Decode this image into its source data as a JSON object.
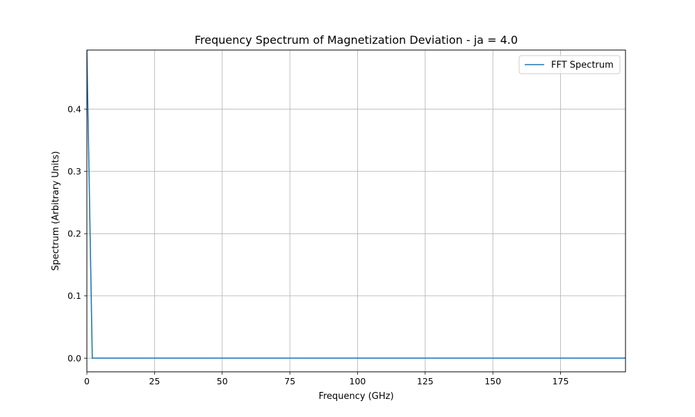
{
  "chart_data": {
    "type": "line",
    "title": "Frequency Spectrum of Magnetization Deviation - ja = 4.0",
    "xlabel": "Frequency (GHz)",
    "ylabel": "Spectrum (Arbitrary Units)",
    "xlim": [
      0,
      199
    ],
    "ylim": [
      -0.022,
      0.495
    ],
    "xticks": [
      0,
      25,
      50,
      75,
      100,
      125,
      150,
      175
    ],
    "xtick_labels": [
      "0",
      "25",
      "50",
      "75",
      "100",
      "125",
      "150",
      "175"
    ],
    "yticks": [
      0.0,
      0.1,
      0.2,
      0.3,
      0.4
    ],
    "ytick_labels": [
      "0.0",
      "0.1",
      "0.2",
      "0.3",
      "0.4"
    ],
    "grid": true,
    "legend_position": "top-right",
    "series": [
      {
        "name": "FFT Spectrum",
        "color": "#1f77b4",
        "x": [
          0,
          2,
          199
        ],
        "y": [
          0.495,
          0.0,
          0.0
        ]
      }
    ]
  }
}
